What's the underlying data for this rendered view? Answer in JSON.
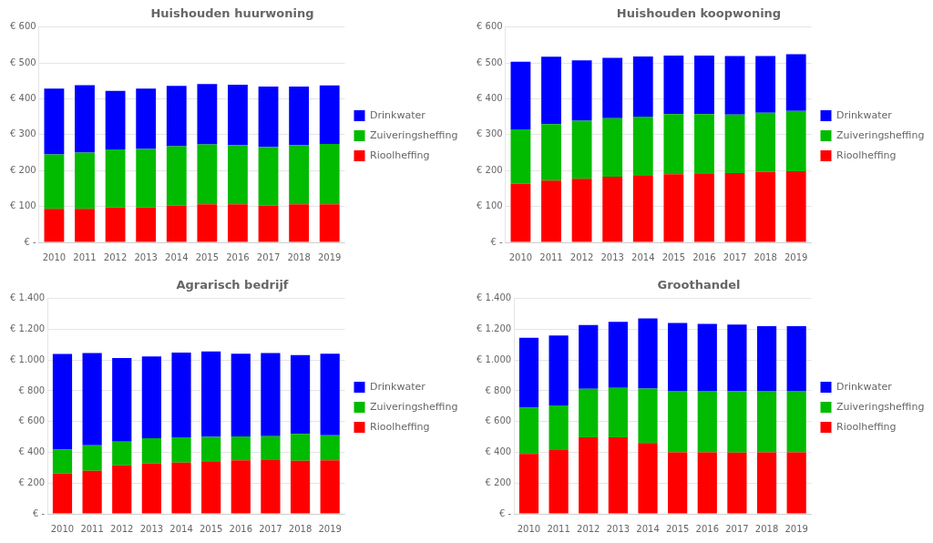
{
  "chart_data": [
    {
      "type": "bar",
      "title": "Huishouden huurwoning",
      "stacked": true,
      "grid": true,
      "legend": "right",
      "categories": [
        "2010",
        "2011",
        "2012",
        "2013",
        "2014",
        "2015",
        "2016",
        "2017",
        "2018",
        "2019"
      ],
      "series": [
        {
          "name": "Rioolheffing",
          "color": "#FF0000",
          "values": [
            93,
            93,
            97,
            97,
            103,
            106,
            106,
            103,
            106,
            106
          ]
        },
        {
          "name": "Zuiveringsheffing",
          "color": "#00BB00",
          "values": [
            152,
            157,
            162,
            163,
            165,
            167,
            165,
            163,
            165,
            168
          ]
        },
        {
          "name": "Drinkwater",
          "color": "#0000FF",
          "values": [
            183,
            188,
            163,
            168,
            168,
            168,
            168,
            168,
            163,
            163
          ]
        }
      ],
      "ylim": [
        0,
        600
      ],
      "yticks": [
        {
          "value": 0,
          "label": "€ -"
        },
        {
          "value": 100,
          "label": "€ 100"
        },
        {
          "value": 200,
          "label": "€ 200"
        },
        {
          "value": 300,
          "label": "€ 300"
        },
        {
          "value": 400,
          "label": "€ 400"
        },
        {
          "value": 500,
          "label": "€ 500"
        },
        {
          "value": 600,
          "label": "€ 600"
        }
      ]
    },
    {
      "type": "bar",
      "title": "Huishouden koopwoning",
      "stacked": true,
      "grid": true,
      "legend": "right",
      "categories": [
        "2010",
        "2011",
        "2012",
        "2013",
        "2014",
        "2015",
        "2016",
        "2017",
        "2018",
        "2019"
      ],
      "series": [
        {
          "name": "Rioolheffing",
          "color": "#FF0000",
          "values": [
            163,
            172,
            177,
            183,
            185,
            190,
            192,
            193,
            196,
            198
          ]
        },
        {
          "name": "Zuiveringsheffing",
          "color": "#00BB00",
          "values": [
            152,
            157,
            162,
            163,
            165,
            167,
            165,
            163,
            165,
            168
          ]
        },
        {
          "name": "Drinkwater",
          "color": "#0000FF",
          "values": [
            188,
            188,
            168,
            168,
            168,
            163,
            163,
            163,
            158,
            158
          ]
        }
      ],
      "ylim": [
        0,
        600
      ],
      "yticks": [
        {
          "value": 0,
          "label": "€ -"
        },
        {
          "value": 100,
          "label": "€ 100"
        },
        {
          "value": 200,
          "label": "€ 200"
        },
        {
          "value": 300,
          "label": "€ 300"
        },
        {
          "value": 400,
          "label": "€ 400"
        },
        {
          "value": 500,
          "label": "€ 500"
        },
        {
          "value": 600,
          "label": "€ 600"
        }
      ]
    },
    {
      "type": "bar",
      "title": "Agrarisch bedrijf",
      "stacked": true,
      "grid": true,
      "legend": "right",
      "categories": [
        "2010",
        "2011",
        "2012",
        "2013",
        "2014",
        "2015",
        "2016",
        "2017",
        "2018",
        "2019"
      ],
      "series": [
        {
          "name": "Rioolheffing",
          "color": "#FF0000",
          "values": [
            263,
            280,
            315,
            328,
            333,
            338,
            348,
            350,
            345,
            348
          ]
        },
        {
          "name": "Zuiveringsheffing",
          "color": "#00BB00",
          "values": [
            155,
            165,
            155,
            163,
            165,
            163,
            155,
            155,
            175,
            163
          ]
        },
        {
          "name": "Drinkwater",
          "color": "#0000FF",
          "values": [
            622,
            600,
            542,
            532,
            550,
            555,
            538,
            540,
            512,
            530
          ]
        }
      ],
      "ylim": [
        0,
        1400
      ],
      "yticks": [
        {
          "value": 0,
          "label": "€ -"
        },
        {
          "value": 200,
          "label": "€ 200"
        },
        {
          "value": 400,
          "label": "€ 400"
        },
        {
          "value": 600,
          "label": "€ 600"
        },
        {
          "value": 800,
          "label": "€ 800"
        },
        {
          "value": 1000,
          "label": "€ 1.000"
        },
        {
          "value": 1200,
          "label": "€ 1.200"
        },
        {
          "value": 1400,
          "label": "€ 1.400"
        }
      ]
    },
    {
      "type": "bar",
      "title": "Groothandel",
      "stacked": true,
      "grid": true,
      "legend": "right",
      "categories": [
        "2010",
        "2011",
        "2012",
        "2013",
        "2014",
        "2015",
        "2016",
        "2017",
        "2018",
        "2019"
      ],
      "series": [
        {
          "name": "Rioolheffing",
          "color": "#FF0000",
          "values": [
            390,
            415,
            498,
            498,
            460,
            400,
            400,
            398,
            400,
            400
          ]
        },
        {
          "name": "Zuiveringsheffing",
          "color": "#00BB00",
          "values": [
            300,
            290,
            315,
            320,
            355,
            400,
            400,
            398,
            400,
            400
          ]
        },
        {
          "name": "Drinkwater",
          "color": "#0000FF",
          "values": [
            455,
            455,
            415,
            430,
            455,
            440,
            435,
            435,
            420,
            420
          ]
        }
      ],
      "ylim": [
        0,
        1400
      ],
      "yticks": [
        {
          "value": 0,
          "label": "€ -"
        },
        {
          "value": 200,
          "label": "€ 200"
        },
        {
          "value": 400,
          "label": "€ 400"
        },
        {
          "value": 600,
          "label": "€ 600"
        },
        {
          "value": 800,
          "label": "€ 800"
        },
        {
          "value": 1000,
          "label": "€ 1.000"
        },
        {
          "value": 1200,
          "label": "€ 1.200"
        },
        {
          "value": 1400,
          "label": "€ 1.400"
        }
      ]
    }
  ]
}
